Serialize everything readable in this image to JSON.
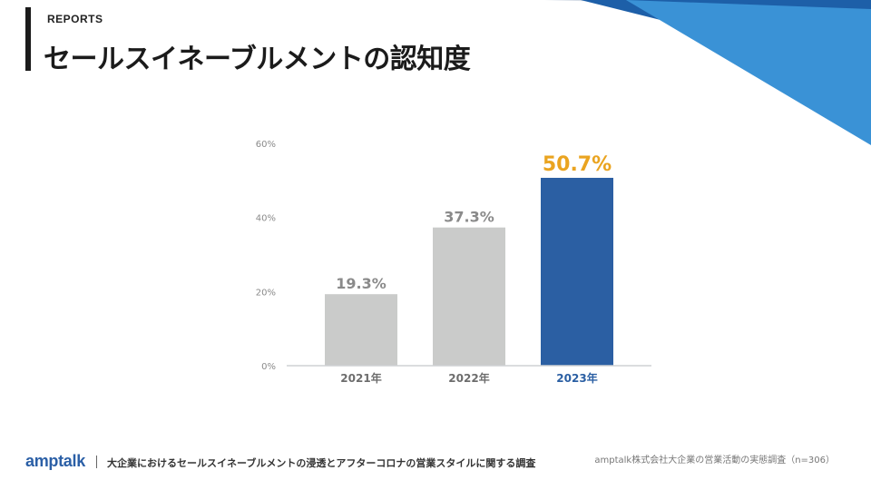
{
  "header": {
    "section_label": "REPORTS",
    "title": "セールスイネーブルメントの認知度"
  },
  "colors": {
    "bar_default": "#cacbca",
    "bar_highlight": "#2b5fa3",
    "label_default": "#8a8a8a",
    "label_highlight": "#eaa420",
    "category_default": "#6d6d6d",
    "category_highlight": "#2b5fa3",
    "corner_dark": "#1d5fa8",
    "corner_light": "#3a92d6"
  },
  "chart_data": {
    "type": "bar",
    "categories": [
      "2021年",
      "2022年",
      "2023年"
    ],
    "values": [
      19.3,
      37.3,
      50.7
    ],
    "value_labels": [
      "19.3%",
      "37.3%",
      "50.7%"
    ],
    "highlight_index": 2,
    "yticks": [
      "0%",
      "20%",
      "40%",
      "60%"
    ],
    "ytick_values": [
      0,
      20,
      40,
      60
    ],
    "ylim": [
      0,
      60
    ],
    "grid": false,
    "title": "",
    "xlabel": "",
    "ylabel": ""
  },
  "footer": {
    "logo": "amptalk",
    "description": "大企業におけるセールスイネーブルメントの浸透とアフターコロナの営業スタイルに関する調査",
    "source": "amptalk株式会社大企業の営業活動の実態調査（n=306）"
  }
}
